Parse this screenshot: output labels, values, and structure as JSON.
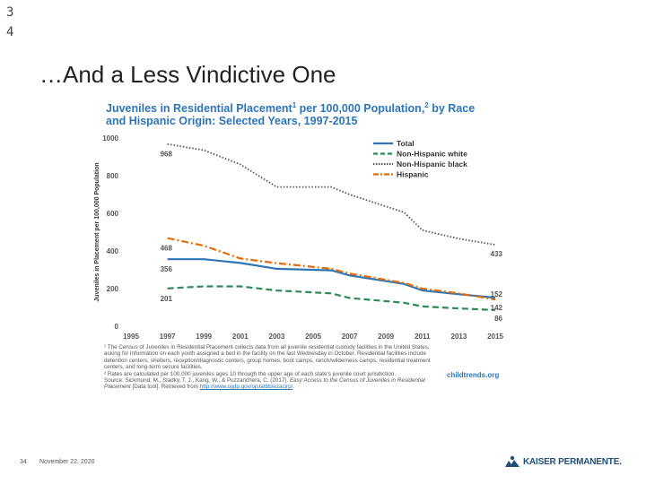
{
  "slide": {
    "corner_digits": [
      "3",
      "4"
    ],
    "title": "…And a Less Vindictive One",
    "number": "34",
    "date": "November 22, 2020",
    "logo_text": "KAISER PERMANENTE."
  },
  "chart_data": {
    "type": "line",
    "title_line1": "Juveniles in Residential Placement",
    "title_sup1": "1",
    "title_mid": " per 100,000 Population,",
    "title_sup2": "2",
    "title_end": " by Race",
    "title_line2": "and Hispanic Origin: Selected Years, 1997-2015",
    "ylabel": "Juveniles in Placement per 100,000 Population",
    "xlabel": "",
    "ylim": [
      0,
      1000
    ],
    "yticks": [
      "0",
      "200",
      "400",
      "600",
      "800",
      "1000"
    ],
    "xlim": [
      1995,
      2015
    ],
    "xticks": [
      "1995",
      "1997",
      "1999",
      "2001",
      "2003",
      "2005",
      "2007",
      "2009",
      "2011",
      "2013",
      "2015"
    ],
    "x": [
      1997,
      1999,
      2001,
      2003,
      2006,
      2007,
      2010,
      2011,
      2013,
      2015
    ],
    "grid": false,
    "legend_position": "top-right",
    "series": [
      {
        "name": "Total",
        "color": "#2e75b6",
        "dash": "solid",
        "values": [
          356,
          356,
          336,
          305,
          297,
          270,
          225,
          190,
          170,
          152
        ]
      },
      {
        "name": "Non-Hispanic white",
        "color": "#2e8b57",
        "dash": "dashed",
        "values": [
          201,
          212,
          212,
          190,
          175,
          150,
          125,
          105,
          95,
          86
        ]
      },
      {
        "name": "Non-Hispanic black",
        "color": "#555555",
        "dash": "dotted",
        "values": [
          968,
          935,
          860,
          740,
          740,
          700,
          605,
          510,
          465,
          433
        ]
      },
      {
        "name": "Hispanic",
        "color": "#e46c0a",
        "dash": "dashdot",
        "values": [
          468,
          428,
          360,
          335,
          305,
          280,
          230,
          200,
          175,
          142
        ]
      }
    ],
    "data_labels": [
      {
        "text": "968",
        "year": 1997,
        "value": 968,
        "anchor": "start"
      },
      {
        "text": "468",
        "year": 1997,
        "value": 468,
        "anchor": "start"
      },
      {
        "text": "356",
        "year": 1997,
        "value": 356,
        "anchor": "start"
      },
      {
        "text": "201",
        "year": 1997,
        "value": 201,
        "anchor": "start"
      },
      {
        "text": "433",
        "year": 2015,
        "value": 433,
        "anchor": "end"
      },
      {
        "text": "152",
        "year": 2015,
        "value": 152,
        "anchor": "end"
      },
      {
        "text": "142",
        "year": 2015,
        "value": 142,
        "anchor": "end"
      },
      {
        "text": "86",
        "year": 2015,
        "value": 86,
        "anchor": "end"
      }
    ]
  },
  "footnote": {
    "line1": "¹ The Census of Juveniles in Residential Placement collects data from all juvenile residential custody facilities in the United States, asking for information on each youth assigned a bed in the facility on the last Wednesday in October. Residential facilities include detention centers, shelters, reception/diagnostic centers, group homes, boot camps, ranch/wilderness camps, residential treatment centers, and long-term secure facilities.",
    "line2": "² Rates are calculated per 100,000 juveniles ages 10 through the upper age of each state's juvenile court jurisdiction.",
    "source_prefix": "Source: Sickmund, M., Sladky, T. J., Kang, W., & Puzzanchera, C. (2017). ",
    "source_title": "Easy Access to the Census of Juveniles in Residential Placement",
    "source_suffix": " [Data tool]. Retrieved from ",
    "source_url": "http://www.ojjdp.gov/ojstatbb/ezacjrp/",
    "source_end": "."
  },
  "source_badge": "childtrends.org"
}
